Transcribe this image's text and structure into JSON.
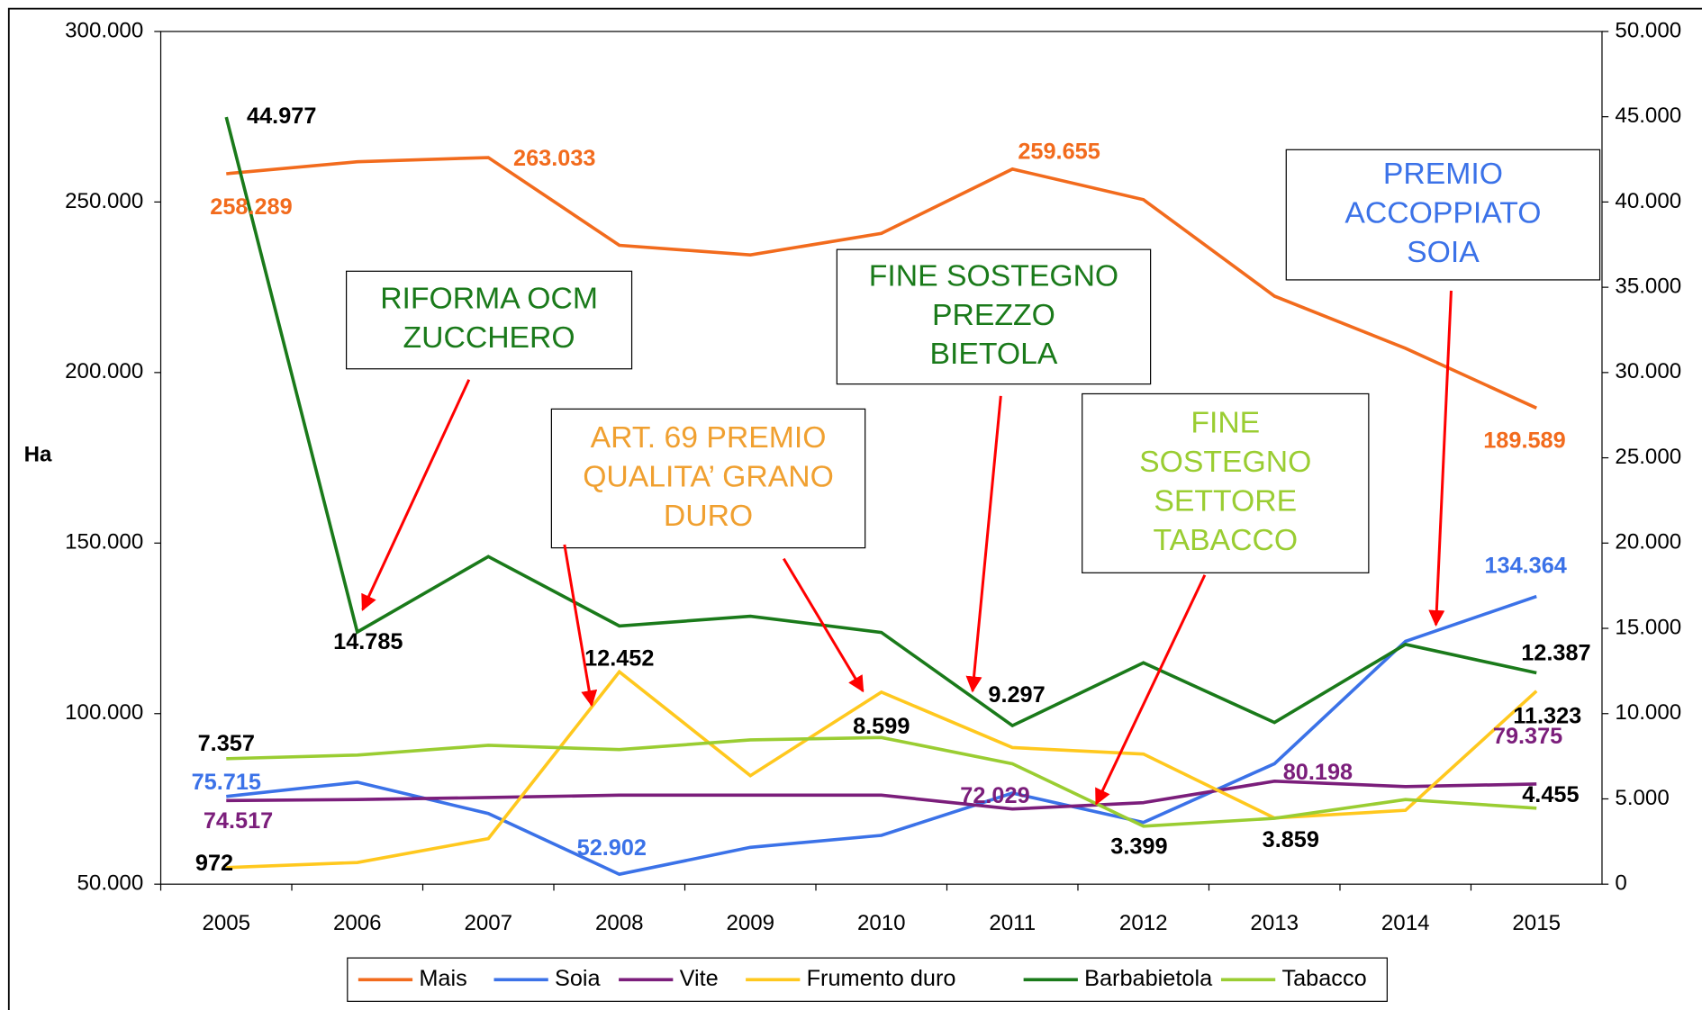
{
  "chart_data": {
    "type": "line",
    "y_label": "Ha",
    "categories": [
      "2005",
      "2006",
      "2007",
      "2008",
      "2009",
      "2010",
      "2011",
      "2012",
      "2013",
      "2014",
      "2015"
    ],
    "ylim": [
      50000,
      300000
    ],
    "yticks": [
      {
        "value": 50000,
        "label": "50.000"
      },
      {
        "value": 100000,
        "label": "100.000"
      },
      {
        "value": 150000,
        "label": "150.000"
      },
      {
        "value": 200000,
        "label": "200.000"
      },
      {
        "value": 250000,
        "label": "250.000"
      },
      {
        "value": 300000,
        "label": "300.000"
      }
    ],
    "y2lim": [
      0,
      50000
    ],
    "y2ticks": [
      0,
      {
        "value": 5000,
        "label": "5.000"
      },
      {
        "value": 10000,
        "label": "10.000"
      },
      {
        "value": 15000,
        "label": "15.000"
      },
      {
        "value": 20000,
        "label": "20.000"
      },
      {
        "value": 25000,
        "label": "25.000"
      },
      {
        "value": 30000,
        "label": "30.000"
      },
      {
        "value": 35000,
        "label": "35.000"
      },
      {
        "value": 40000,
        "label": "40.000"
      },
      {
        "value": 45000,
        "label": "45.000"
      },
      {
        "value": 50000,
        "label": "50.000"
      }
    ],
    "legend": "bottom",
    "series": [
      {
        "name": "Mais",
        "color": "#f26b1d",
        "label_color": "#f26b1d",
        "axis": "y",
        "values": [
          258289,
          261800,
          263033,
          237300,
          234500,
          240800,
          259655,
          250700,
          222400,
          207100,
          189589
        ],
        "value_labels": [
          "258.289",
          null,
          "263.033",
          null,
          null,
          null,
          "259.655",
          null,
          null,
          null,
          "189.589"
        ]
      },
      {
        "name": "Soia",
        "color": "#3b72e8",
        "label_color": "#3b72e8",
        "axis": "y",
        "values": [
          75715,
          79900,
          70700,
          52902,
          60800,
          64300,
          76700,
          68100,
          85300,
          121200,
          134364
        ],
        "value_labels": [
          "75.715",
          null,
          null,
          "52.902",
          null,
          null,
          null,
          null,
          null,
          null,
          "134.364"
        ]
      },
      {
        "name": "Vite",
        "color": "#7b1e7b",
        "label_color": "#7b1e7b",
        "axis": "y",
        "values": [
          74517,
          74800,
          75400,
          76100,
          76100,
          76100,
          72029,
          73900,
          80198,
          78600,
          79375
        ],
        "value_labels": [
          "74.517",
          null,
          null,
          null,
          null,
          null,
          "72.029",
          null,
          "80.198",
          null,
          "79.375"
        ]
      },
      {
        "name": "Frumento duro",
        "color": "#ffc81e",
        "label_color": "#000000",
        "axis": "y2",
        "values": [
          972,
          1270,
          2670,
          12452,
          6360,
          11260,
          8010,
          7630,
          3880,
          4330,
          11323
        ],
        "value_labels": [
          "972",
          null,
          null,
          "12.452",
          null,
          null,
          null,
          null,
          null,
          null,
          "11.323"
        ]
      },
      {
        "name": "Barbabietola",
        "color": "#1a7a1a",
        "label_color": "#000000",
        "axis": "y2",
        "values": [
          44977,
          14785,
          19210,
          15140,
          15710,
          14760,
          9297,
          12980,
          9480,
          14060,
          12387
        ],
        "value_labels": [
          "44.977",
          "14.785",
          null,
          null,
          null,
          null,
          "9.297",
          null,
          null,
          null,
          "12.387"
        ]
      },
      {
        "name": "Tabacco",
        "color": "#9acd32",
        "label_color": "#000000",
        "axis": "y2",
        "values": [
          7357,
          7570,
          8140,
          7890,
          8460,
          8599,
          7060,
          3399,
          3859,
          4960,
          4455
        ],
        "value_labels": [
          "7.357",
          null,
          null,
          null,
          null,
          "8.599",
          null,
          "3.399",
          "3.859",
          null,
          "4.455"
        ]
      }
    ],
    "annotations": [
      {
        "lines": [
          "RIFORMA OCM",
          "ZUCCHERO"
        ],
        "color": "#1a7a1a"
      },
      {
        "lines": [
          "ART. 69 PREMIO",
          "QUALITA’ GRANO",
          "DURO"
        ],
        "color": "#f0a030"
      },
      {
        "lines": [
          "FINE SOSTEGNO",
          "PREZZO",
          "BIETOLA"
        ],
        "color": "#1a7a1a"
      },
      {
        "lines": [
          "FINE",
          "SOSTEGNO",
          "SETTORE",
          "TABACCO"
        ],
        "color": "#9acd32"
      },
      {
        "lines": [
          "PREMIO",
          "ACCOPPIATO",
          "SOIA"
        ],
        "color": "#3b72e8"
      }
    ]
  }
}
